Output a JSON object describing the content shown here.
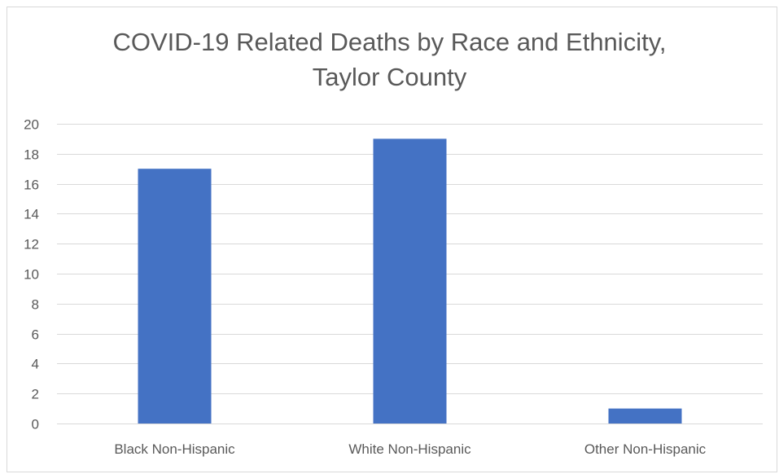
{
  "chart_data": {
    "type": "bar",
    "title_lines": [
      "COVID-19 Related Deaths by Race and Ethnicity,",
      "Taylor County"
    ],
    "categories": [
      "Black Non-Hispanic",
      "White Non-Hispanic",
      "Other Non-Hispanic"
    ],
    "values": [
      17,
      19,
      1
    ],
    "xlabel": "",
    "ylabel": "",
    "ylim": [
      0,
      20
    ],
    "yticks": [
      0,
      2,
      4,
      6,
      8,
      10,
      12,
      14,
      16,
      18,
      20
    ],
    "grid": true,
    "legend": "none",
    "bar_color": "#4472C4",
    "grid_color": "#d9d9d9",
    "text_color": "#595959"
  }
}
